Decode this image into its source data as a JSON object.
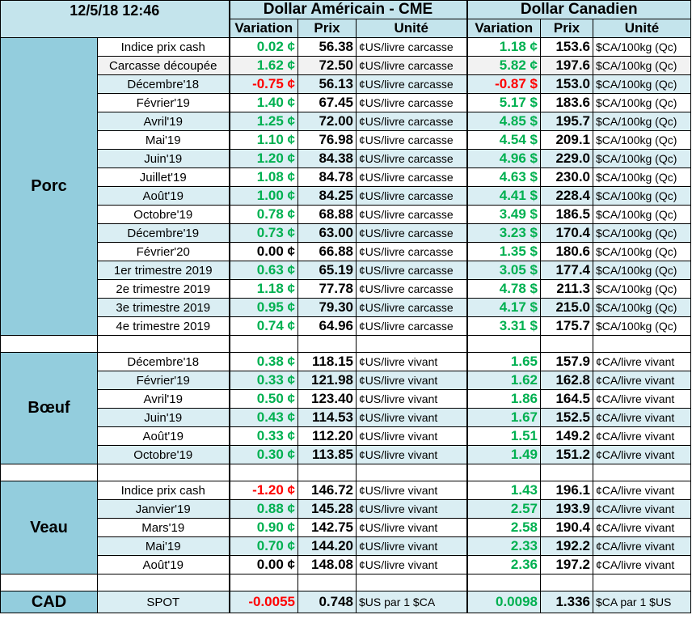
{
  "header": {
    "timestamp": "12/5/18 12:46",
    "us": {
      "title": "Dollar Américain - CME",
      "columns": [
        "Variation",
        "Prix",
        "Unité"
      ]
    },
    "ca": {
      "title": "Dollar Canadien",
      "columns": [
        "Variation",
        "Prix",
        "Unité"
      ]
    }
  },
  "sections": [
    {
      "name": "Porc",
      "rows": [
        [
          "Indice prix cash",
          "0.02 ¢",
          "56.38",
          "¢US/livre carcasse",
          "1.18 ¢",
          "153.6",
          "$CA/100kg (Qc)"
        ],
        [
          "Carcasse découpée",
          "1.62 ¢",
          "72.50",
          "¢US/livre carcasse",
          "5.82 ¢",
          "197.6",
          "$CA/100kg (Qc)"
        ],
        [
          "Décembre'18",
          "-0.75 ¢",
          "56.13",
          "¢US/livre carcasse",
          "-0.87 $",
          "153.0",
          "$CA/100kg (Qc)"
        ],
        [
          "Février'19",
          "1.40 ¢",
          "67.45",
          "¢US/livre carcasse",
          "5.17 $",
          "183.6",
          "$CA/100kg (Qc)"
        ],
        [
          "Avril'19",
          "1.25 ¢",
          "72.00",
          "¢US/livre carcasse",
          "4.85 $",
          "195.7",
          "$CA/100kg (Qc)"
        ],
        [
          "Mai'19",
          "1.10 ¢",
          "76.98",
          "¢US/livre carcasse",
          "4.54 $",
          "209.1",
          "$CA/100kg (Qc)"
        ],
        [
          "Juin'19",
          "1.20 ¢",
          "84.38",
          "¢US/livre carcasse",
          "4.96 $",
          "229.0",
          "$CA/100kg (Qc)"
        ],
        [
          "Juillet'19",
          "1.08 ¢",
          "84.78",
          "¢US/livre carcasse",
          "4.63 $",
          "230.0",
          "$CA/100kg (Qc)"
        ],
        [
          "Août'19",
          "1.00 ¢",
          "84.25",
          "¢US/livre carcasse",
          "4.41 $",
          "228.4",
          "$CA/100kg (Qc)"
        ],
        [
          "Octobre'19",
          "0.78 ¢",
          "68.88",
          "¢US/livre carcasse",
          "3.49 $",
          "186.5",
          "$CA/100kg (Qc)"
        ],
        [
          "Décembre'19",
          "0.73 ¢",
          "63.00",
          "¢US/livre carcasse",
          "3.23 $",
          "170.4",
          "$CA/100kg (Qc)"
        ],
        [
          "Février'20",
          "0.00 ¢",
          "66.88",
          "¢US/livre carcasse",
          "1.35 $",
          "180.6",
          "$CA/100kg (Qc)"
        ],
        [
          "1er trimestre 2019",
          "0.63 ¢",
          "65.19",
          "¢US/livre carcasse",
          "3.05 $",
          "177.4",
          "$CA/100kg (Qc)"
        ],
        [
          "2e trimestre 2019",
          "1.18 ¢",
          "77.78",
          "¢US/livre carcasse",
          "4.78 $",
          "211.3",
          "$CA/100kg (Qc)"
        ],
        [
          "3e trimestre 2019",
          "0.95 ¢",
          "79.30",
          "¢US/livre carcasse",
          "4.17 $",
          "215.0",
          "$CA/100kg (Qc)"
        ],
        [
          "4e trimestre 2019",
          "0.74 ¢",
          "64.96",
          "¢US/livre carcasse",
          "3.31 $",
          "175.7",
          "$CA/100kg (Qc)"
        ]
      ]
    },
    {
      "name": "Bœuf",
      "rows": [
        [
          "Décembre'18",
          "0.38 ¢",
          "118.15",
          "¢US/livre vivant",
          "1.65",
          "157.9",
          "¢CA/livre vivant"
        ],
        [
          "Février'19",
          "0.33 ¢",
          "121.98",
          "¢US/livre vivant",
          "1.62",
          "162.8",
          "¢CA/livre vivant"
        ],
        [
          "Avril'19",
          "0.50 ¢",
          "123.40",
          "¢US/livre vivant",
          "1.86",
          "164.5",
          "¢CA/livre vivant"
        ],
        [
          "Juin'19",
          "0.43 ¢",
          "114.53",
          "¢US/livre vivant",
          "1.67",
          "152.5",
          "¢CA/livre vivant"
        ],
        [
          "Août'19",
          "0.33 ¢",
          "112.20",
          "¢US/livre vivant",
          "1.51",
          "149.2",
          "¢CA/livre vivant"
        ],
        [
          "Octobre'19",
          "0.30 ¢",
          "113.85",
          "¢US/livre vivant",
          "1.49",
          "151.2",
          "¢CA/livre vivant"
        ]
      ]
    },
    {
      "name": "Veau",
      "rows": [
        [
          "Indice prix cash",
          "-1.20 ¢",
          "146.72",
          "¢US/livre vivant",
          "1.43",
          "196.1",
          "¢CA/livre vivant"
        ],
        [
          "Janvier'19",
          "0.88 ¢",
          "145.28",
          "¢US/livre vivant",
          "2.57",
          "193.9",
          "¢CA/livre vivant"
        ],
        [
          "Mars'19",
          "0.90 ¢",
          "142.75",
          "¢US/livre vivant",
          "2.58",
          "190.4",
          "¢CA/livre vivant"
        ],
        [
          "Mai'19",
          "0.70 ¢",
          "144.20",
          "¢US/livre vivant",
          "2.33",
          "192.2",
          "¢CA/livre vivant"
        ],
        [
          "Août'19",
          "0.00 ¢",
          "148.08",
          "¢US/livre vivant",
          "2.36",
          "197.2",
          "¢CA/livre vivant"
        ]
      ]
    }
  ],
  "cad": {
    "name": "CAD",
    "row": [
      "SPOT",
      "-0.0055",
      "0.748",
      "$US par 1 $CA",
      "0.0098",
      "1.336",
      "$CA par 1 $US"
    ]
  }
}
